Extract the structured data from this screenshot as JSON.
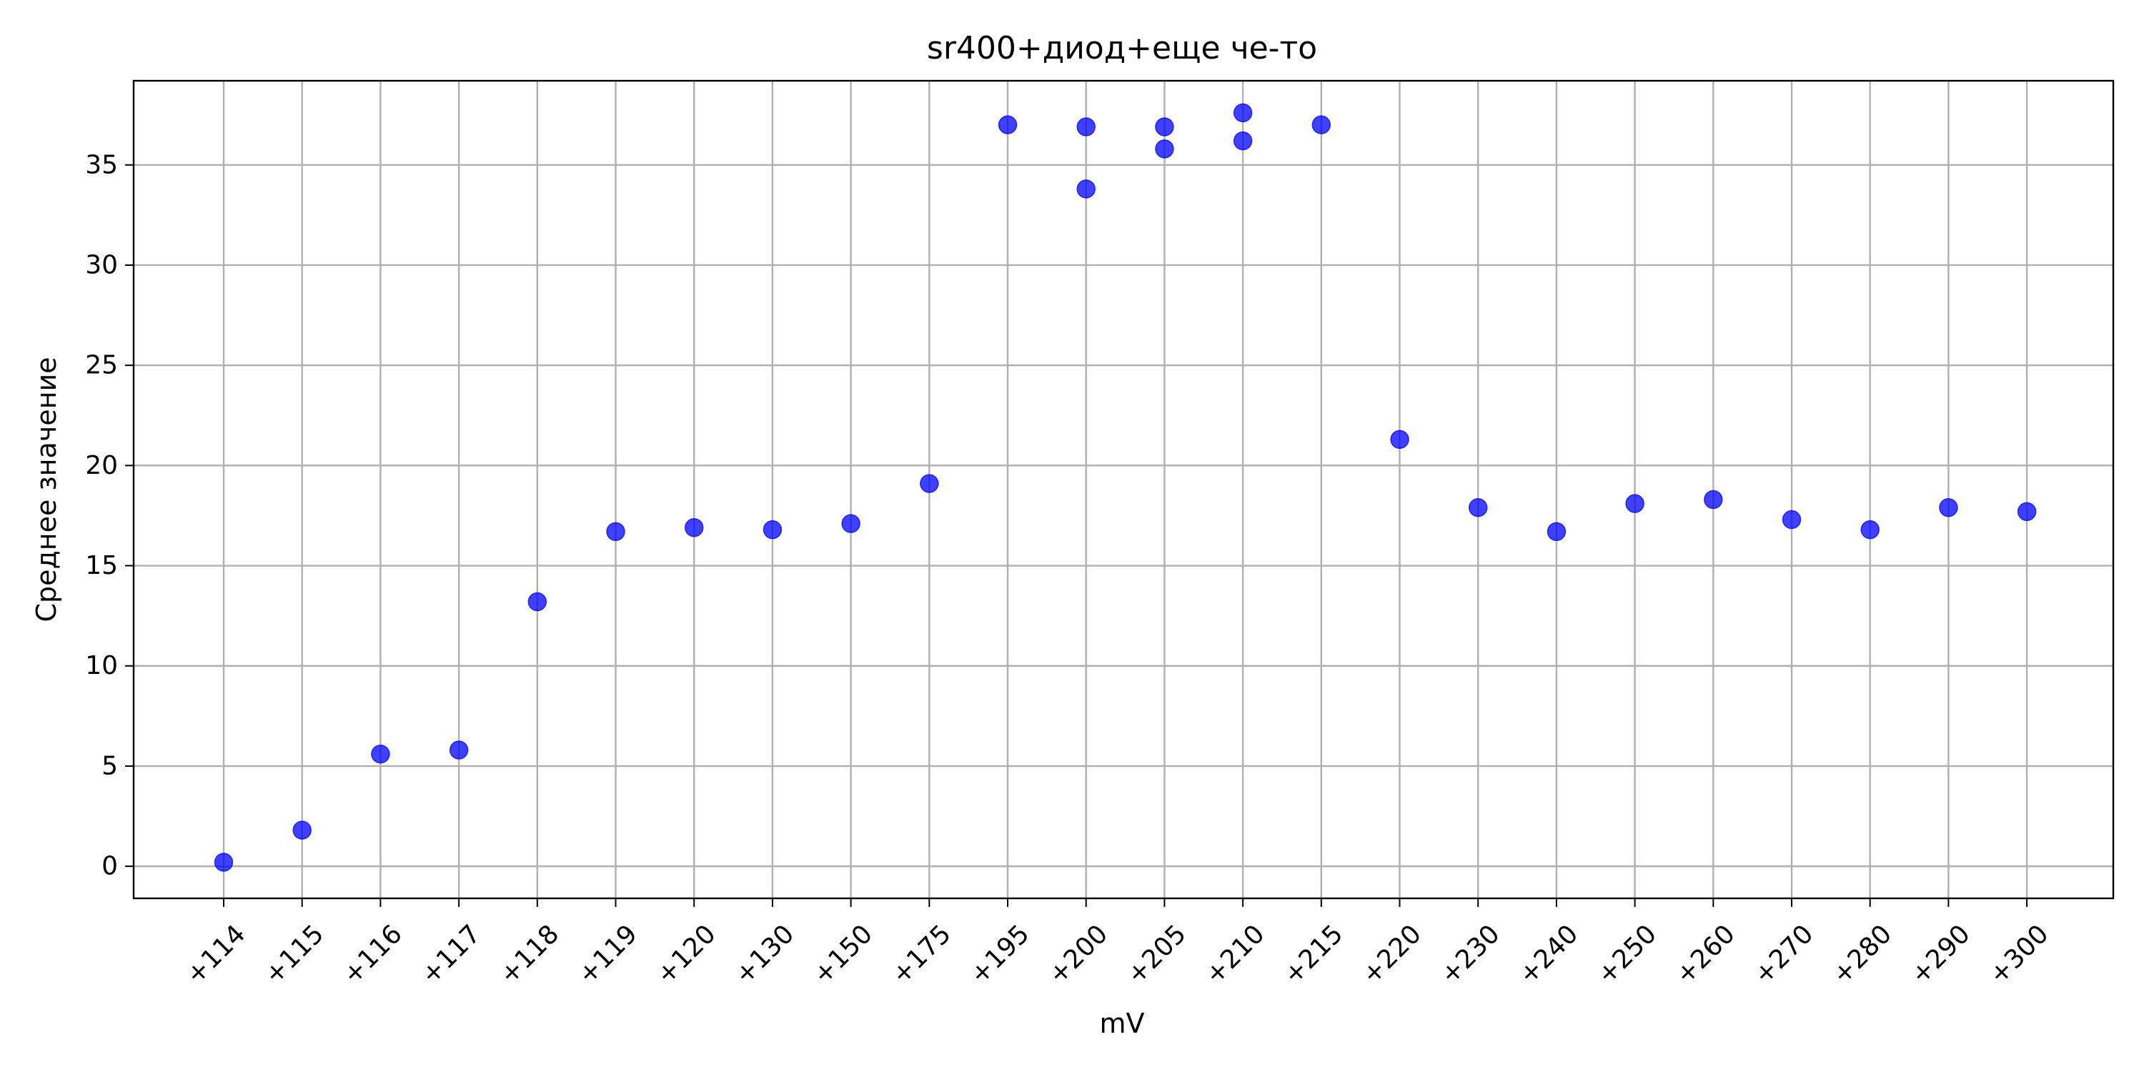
{
  "chart_data": {
    "type": "scatter",
    "title": "sr400+диод+еще че-то",
    "xlabel": "mV",
    "ylabel": "Среднее значение",
    "categories": [
      "+114",
      "+115",
      "+116",
      "+117",
      "+118",
      "+119",
      "+120",
      "+130",
      "+150",
      "+175",
      "+195",
      "+200",
      "+205",
      "+210",
      "+215",
      "+220",
      "+230",
      "+240",
      "+250",
      "+260",
      "+270",
      "+280",
      "+290",
      "+300"
    ],
    "yticks": [
      0,
      5,
      10,
      15,
      20,
      25,
      30,
      35
    ],
    "ylim": [
      -1.6,
      39.2
    ],
    "grid": true,
    "marker_color": "#0000ff",
    "marker_alpha": 0.75,
    "points": [
      {
        "x": "+114",
        "y": 0.2
      },
      {
        "x": "+115",
        "y": 1.8
      },
      {
        "x": "+116",
        "y": 5.6
      },
      {
        "x": "+117",
        "y": 5.8
      },
      {
        "x": "+118",
        "y": 13.2
      },
      {
        "x": "+119",
        "y": 16.7
      },
      {
        "x": "+120",
        "y": 16.9
      },
      {
        "x": "+130",
        "y": 16.8
      },
      {
        "x": "+150",
        "y": 17.1
      },
      {
        "x": "+175",
        "y": 19.1
      },
      {
        "x": "+195",
        "y": 37.0
      },
      {
        "x": "+200",
        "y": 36.9
      },
      {
        "x": "+200",
        "y": 33.8
      },
      {
        "x": "+205",
        "y": 36.9
      },
      {
        "x": "+205",
        "y": 35.8
      },
      {
        "x": "+210",
        "y": 37.6
      },
      {
        "x": "+210",
        "y": 36.2
      },
      {
        "x": "+215",
        "y": 37.0
      },
      {
        "x": "+220",
        "y": 21.3
      },
      {
        "x": "+230",
        "y": 17.9
      },
      {
        "x": "+240",
        "y": 16.7
      },
      {
        "x": "+250",
        "y": 18.1
      },
      {
        "x": "+260",
        "y": 18.3
      },
      {
        "x": "+270",
        "y": 17.3
      },
      {
        "x": "+280",
        "y": 16.8
      },
      {
        "x": "+290",
        "y": 17.9
      },
      {
        "x": "+300",
        "y": 17.7
      }
    ]
  }
}
